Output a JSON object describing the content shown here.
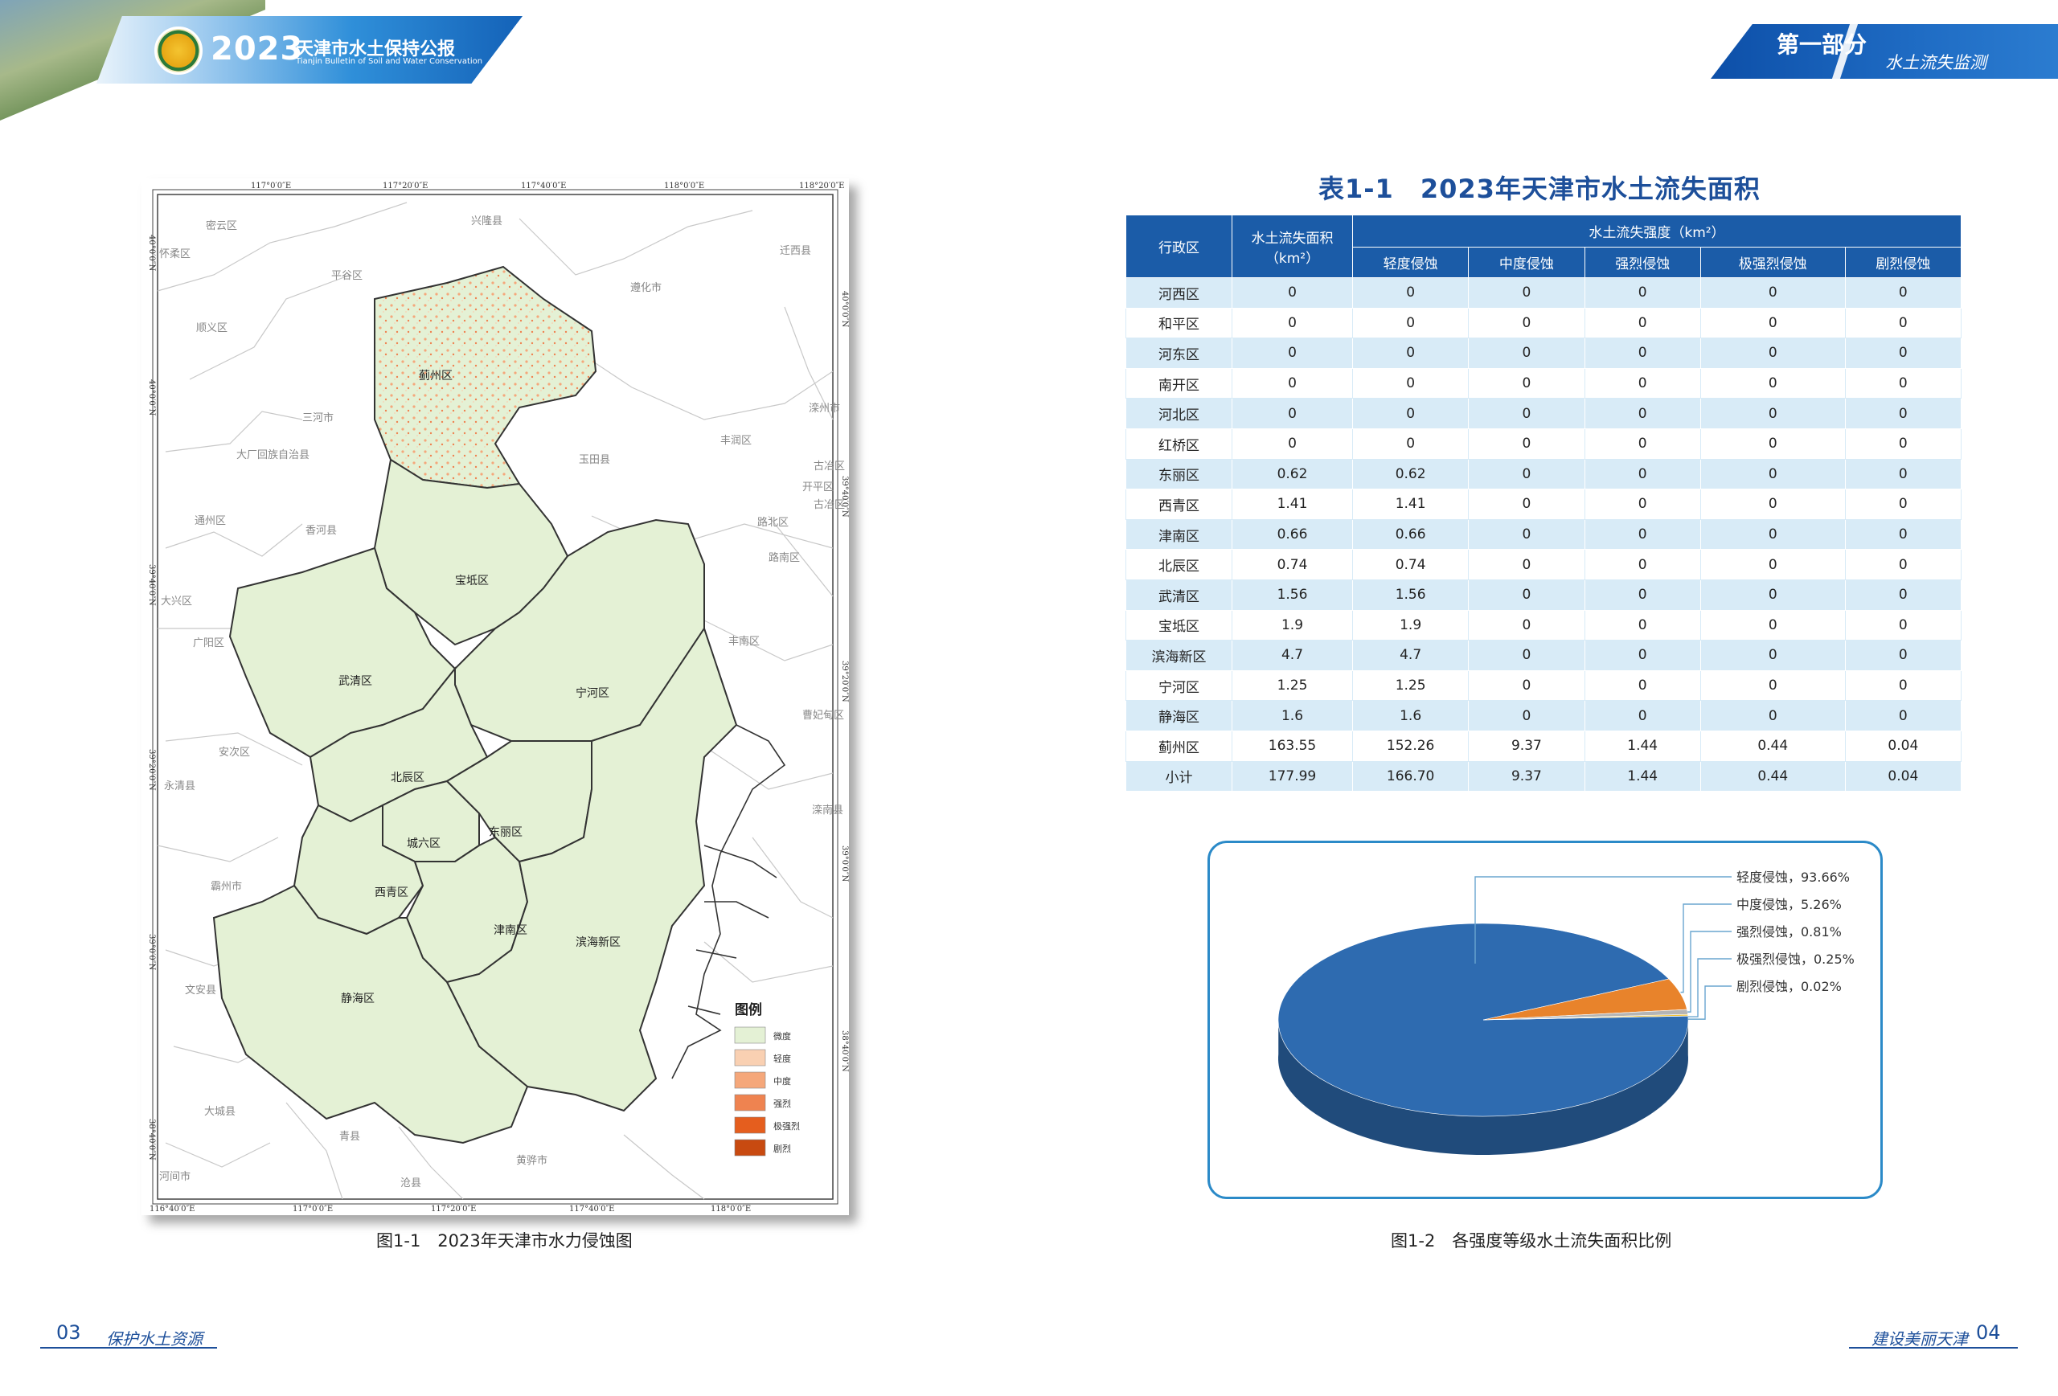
{
  "header": {
    "year": "2023",
    "title": "天津市水土保持公报",
    "subtitle": "Tianjin Bulletin of Soil and Water Conservation",
    "part": "第一部分",
    "topic": "水土流失监测"
  },
  "map": {
    "caption": "图1-1　2023年天津市水力侵蚀图",
    "top_ticks": [
      "117°0′0″E",
      "117°20′0″E",
      "117°40′0″E",
      "118°0′0″E",
      "118°20′0″E"
    ],
    "bottom_ticks": [
      "116°40′0″E",
      "117°0′0″E",
      "117°20′0″E",
      "117°40′0″E",
      "118°0′0″E"
    ],
    "left_ticks": [
      "40°0′0″N",
      "40°0′0″N",
      "39°40′0″N",
      "39°20′0″N",
      "39°0′0″N",
      "38°40′0″N"
    ],
    "right_ticks": [
      "40°0′0″N",
      "39°40′0″N",
      "39°20′0″N",
      "39°0′0″N",
      "38°40′0″N"
    ],
    "tianjin_labels": [
      "蓟州区",
      "宝坻区",
      "武清区",
      "宁河区",
      "北辰区",
      "东丽区",
      "城六区",
      "西青区",
      "津南区",
      "滨海新区",
      "静海区"
    ],
    "outer_labels": [
      "密云区",
      "兴隆县",
      "怀柔区",
      "平谷区",
      "迁西县",
      "遵化市",
      "顺义区",
      "三河市",
      "大厂回族自治县",
      "玉田县",
      "丰润区",
      "滦州市",
      "古冶区",
      "开平区",
      "古冶区",
      "通州区",
      "香河县",
      "路北区",
      "路南区",
      "大兴区",
      "广阳区",
      "丰南区",
      "安次区",
      "永清县",
      "曹妃甸区",
      "滦南县",
      "霸州市",
      "文安县",
      "大城县",
      "青县",
      "黄骅市",
      "沧县",
      "河间市"
    ],
    "legend": {
      "title": "图例",
      "items": [
        {
          "label": "微度",
          "color": "#e4f1d5"
        },
        {
          "label": "轻度",
          "color": "#f9d0b2"
        },
        {
          "label": "中度",
          "color": "#f5a77a"
        },
        {
          "label": "强烈",
          "color": "#ef8350"
        },
        {
          "label": "极强烈",
          "color": "#e55e1e"
        },
        {
          "label": "剧烈",
          "color": "#c84a10"
        }
      ]
    }
  },
  "table": {
    "title": "表1-1　2023年天津市水土流失面积",
    "headers": {
      "district": "行政区",
      "area": "水土流失面积（km²）",
      "intensity": "水土流失强度（km²）",
      "levels": [
        "轻度侵蚀",
        "中度侵蚀",
        "强烈侵蚀",
        "极强烈侵蚀",
        "剧烈侵蚀"
      ]
    },
    "rows": [
      [
        "河西区",
        "0",
        "0",
        "0",
        "0",
        "0",
        "0"
      ],
      [
        "和平区",
        "0",
        "0",
        "0",
        "0",
        "0",
        "0"
      ],
      [
        "河东区",
        "0",
        "0",
        "0",
        "0",
        "0",
        "0"
      ],
      [
        "南开区",
        "0",
        "0",
        "0",
        "0",
        "0",
        "0"
      ],
      [
        "河北区",
        "0",
        "0",
        "0",
        "0",
        "0",
        "0"
      ],
      [
        "红桥区",
        "0",
        "0",
        "0",
        "0",
        "0",
        "0"
      ],
      [
        "东丽区",
        "0.62",
        "0.62",
        "0",
        "0",
        "0",
        "0"
      ],
      [
        "西青区",
        "1.41",
        "1.41",
        "0",
        "0",
        "0",
        "0"
      ],
      [
        "津南区",
        "0.66",
        "0.66",
        "0",
        "0",
        "0",
        "0"
      ],
      [
        "北辰区",
        "0.74",
        "0.74",
        "0",
        "0",
        "0",
        "0"
      ],
      [
        "武清区",
        "1.56",
        "1.56",
        "0",
        "0",
        "0",
        "0"
      ],
      [
        "宝坻区",
        "1.9",
        "1.9",
        "0",
        "0",
        "0",
        "0"
      ],
      [
        "滨海新区",
        "4.7",
        "4.7",
        "0",
        "0",
        "0",
        "0"
      ],
      [
        "宁河区",
        "1.25",
        "1.25",
        "0",
        "0",
        "0",
        "0"
      ],
      [
        "静海区",
        "1.6",
        "1.6",
        "0",
        "0",
        "0",
        "0"
      ],
      [
        "蓟州区",
        "163.55",
        "152.26",
        "9.37",
        "1.44",
        "0.44",
        "0.04"
      ],
      [
        "小计",
        "177.99",
        "166.70",
        "9.37",
        "1.44",
        "0.44",
        "0.04"
      ]
    ]
  },
  "chart_data": {
    "type": "pie",
    "title": "",
    "caption": "图1-2　各强度等级水土流失面积比例",
    "slices": [
      {
        "label": "轻度侵蚀",
        "value": 93.66,
        "display": "轻度侵蚀，93.66%",
        "color": "#2e6bb0"
      },
      {
        "label": "中度侵蚀",
        "value": 5.26,
        "display": "中度侵蚀，5.26%",
        "color": "#e8832b"
      },
      {
        "label": "强烈侵蚀",
        "value": 0.81,
        "display": "强烈侵蚀，0.81%",
        "color": "#b5b5b5"
      },
      {
        "label": "极强烈侵蚀",
        "value": 0.25,
        "display": "极强烈侵蚀，0.25%",
        "color": "#f2c12e"
      },
      {
        "label": "剧烈侵蚀",
        "value": 0.02,
        "display": "剧烈侵蚀，0.02%",
        "color": "#5a9bd5"
      }
    ]
  },
  "footer": {
    "left_page": "03",
    "left_text": "保护水土资源",
    "right_text": "建设美丽天津",
    "right_page": "04"
  }
}
